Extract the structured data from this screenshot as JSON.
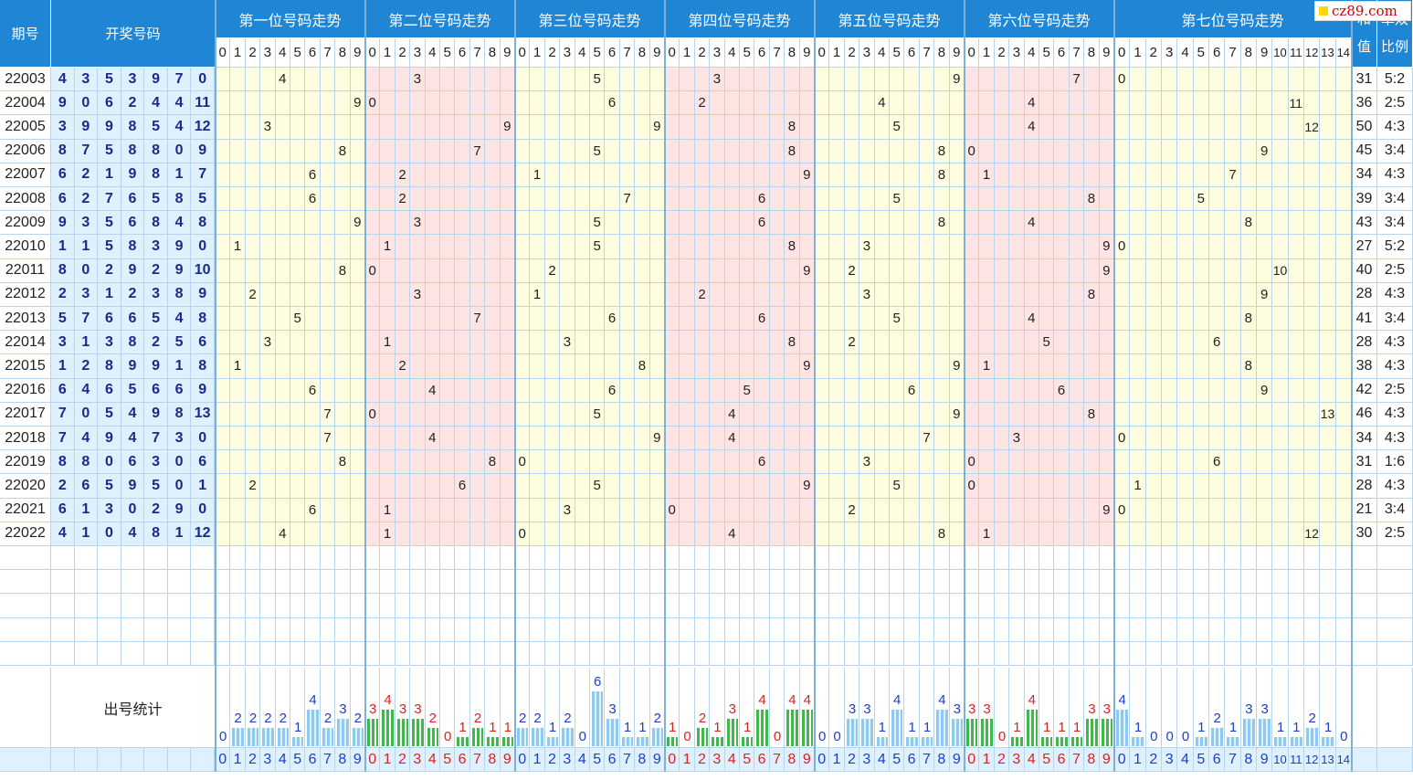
{
  "logo": "cz89.com",
  "headers": {
    "period": "期号",
    "winning": "开奖号码",
    "sum": "和值",
    "ratio": "单双比例",
    "positions": [
      "第一位号码走势",
      "第二位号码走势",
      "第三位号码走势",
      "第四位号码走势",
      "第五位号码走势",
      "第六位号码走势",
      "第七位号码走势"
    ]
  },
  "stats_label": "出号统计",
  "rows": [
    {
      "p": "22003",
      "n": [
        4,
        3,
        5,
        3,
        9,
        7,
        0
      ],
      "sum": "31",
      "ratio": "5:2"
    },
    {
      "p": "22004",
      "n": [
        9,
        0,
        6,
        2,
        4,
        4,
        11
      ],
      "sum": "36",
      "ratio": "2:5"
    },
    {
      "p": "22005",
      "n": [
        3,
        9,
        9,
        8,
        5,
        4,
        12
      ],
      "sum": "50",
      "ratio": "4:3"
    },
    {
      "p": "22006",
      "n": [
        8,
        7,
        5,
        8,
        8,
        0,
        9
      ],
      "sum": "45",
      "ratio": "3:4"
    },
    {
      "p": "22007",
      "n": [
        6,
        2,
        1,
        9,
        8,
        1,
        7
      ],
      "sum": "34",
      "ratio": "4:3"
    },
    {
      "p": "22008",
      "n": [
        6,
        2,
        7,
        6,
        5,
        8,
        5
      ],
      "sum": "39",
      "ratio": "3:4"
    },
    {
      "p": "22009",
      "n": [
        9,
        3,
        5,
        6,
        8,
        4,
        8
      ],
      "sum": "43",
      "ratio": "3:4"
    },
    {
      "p": "22010",
      "n": [
        1,
        1,
        5,
        8,
        3,
        9,
        0
      ],
      "sum": "27",
      "ratio": "5:2"
    },
    {
      "p": "22011",
      "n": [
        8,
        0,
        2,
        9,
        2,
        9,
        10
      ],
      "sum": "40",
      "ratio": "2:5"
    },
    {
      "p": "22012",
      "n": [
        2,
        3,
        1,
        2,
        3,
        8,
        9
      ],
      "sum": "28",
      "ratio": "4:3"
    },
    {
      "p": "22013",
      "n": [
        5,
        7,
        6,
        6,
        5,
        4,
        8
      ],
      "sum": "41",
      "ratio": "3:4"
    },
    {
      "p": "22014",
      "n": [
        3,
        1,
        3,
        8,
        2,
        5,
        6
      ],
      "sum": "28",
      "ratio": "4:3"
    },
    {
      "p": "22015",
      "n": [
        1,
        2,
        8,
        9,
        9,
        1,
        8
      ],
      "sum": "38",
      "ratio": "4:3"
    },
    {
      "p": "22016",
      "n": [
        6,
        4,
        6,
        5,
        6,
        6,
        9
      ],
      "sum": "42",
      "ratio": "2:5"
    },
    {
      "p": "22017",
      "n": [
        7,
        0,
        5,
        4,
        9,
        8,
        13
      ],
      "sum": "46",
      "ratio": "4:3"
    },
    {
      "p": "22018",
      "n": [
        7,
        4,
        9,
        4,
        7,
        3,
        0
      ],
      "sum": "34",
      "ratio": "4:3"
    },
    {
      "p": "22019",
      "n": [
        8,
        8,
        0,
        6,
        3,
        0,
        6
      ],
      "sum": "31",
      "ratio": "1:6"
    },
    {
      "p": "22020",
      "n": [
        2,
        6,
        5,
        9,
        5,
        0,
        1
      ],
      "sum": "28",
      "ratio": "4:3"
    },
    {
      "p": "22021",
      "n": [
        6,
        1,
        3,
        0,
        2,
        9,
        0
      ],
      "sum": "21",
      "ratio": "3:4"
    },
    {
      "p": "22022",
      "n": [
        4,
        1,
        0,
        4,
        8,
        1,
        12
      ],
      "sum": "30",
      "ratio": "2:5"
    }
  ],
  "stats": [
    [
      0,
      2,
      2,
      2,
      2,
      1,
      4,
      2,
      3,
      2
    ],
    [
      3,
      4,
      3,
      3,
      2,
      0,
      1,
      2,
      1,
      1
    ],
    [
      2,
      2,
      1,
      2,
      0,
      6,
      3,
      1,
      1,
      2
    ],
    [
      1,
      0,
      2,
      1,
      3,
      1,
      4,
      0,
      4,
      4
    ],
    [
      0,
      0,
      3,
      3,
      1,
      4,
      1,
      1,
      4,
      3
    ],
    [
      3,
      3,
      0,
      1,
      4,
      1,
      1,
      1,
      3,
      3
    ],
    [
      4,
      1,
      0,
      0,
      0,
      1,
      2,
      1,
      3,
      3,
      1,
      1,
      2,
      1,
      0
    ]
  ],
  "colors": {
    "blue_bar": "#8ec9f2",
    "green_bar": "#3fb94a",
    "blue_text": "#1a3fcf",
    "red_text": "#e02020"
  }
}
